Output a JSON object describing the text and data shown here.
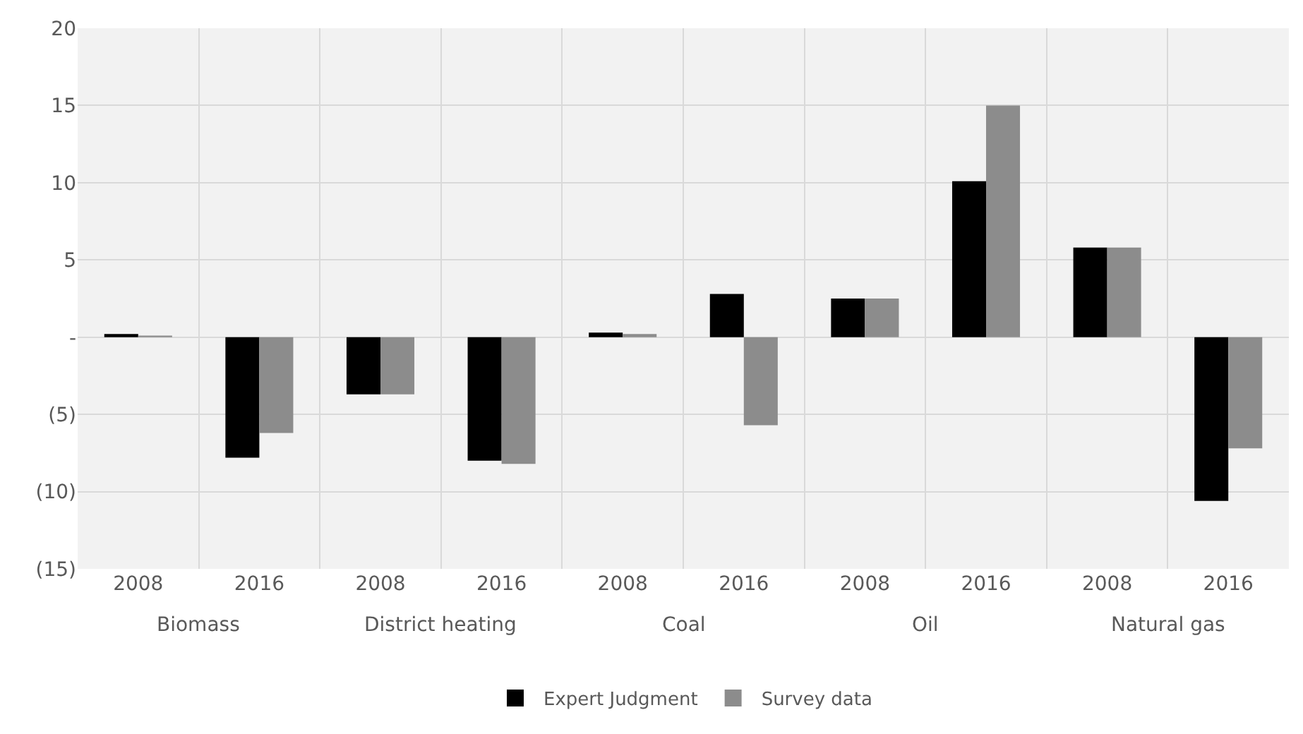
{
  "chart_data": {
    "type": "bar",
    "categories": [
      "2008",
      "2016",
      "2008",
      "2016",
      "2008",
      "2016",
      "2008",
      "2016",
      "2008",
      "2016"
    ],
    "annotations": [
      "Biomass",
      "District heating",
      "Coal",
      "Oil",
      "Natural gas"
    ],
    "series": [
      {
        "name": "Expert Judgment",
        "color": "#000000",
        "values": [
          0.2,
          -7.8,
          -3.7,
          -8.0,
          0.3,
          2.8,
          2.5,
          10.1,
          5.8,
          -10.6
        ]
      },
      {
        "name": "Survey data",
        "color": "#8c8c8c",
        "values": [
          0.1,
          -6.2,
          -3.7,
          -8.2,
          0.2,
          -5.7,
          2.5,
          15,
          5.8,
          -7.2
        ]
      }
    ],
    "ylim": [
      -15,
      20
    ],
    "yticks": [
      {
        "value": -15,
        "label": "(15)"
      },
      {
        "value": -10,
        "label": "(10)"
      },
      {
        "value": -5,
        "label": "(5)"
      },
      {
        "value": 0,
        "label": "-"
      },
      5,
      10,
      15,
      20
    ],
    "grid": true,
    "legend": "bottom"
  }
}
